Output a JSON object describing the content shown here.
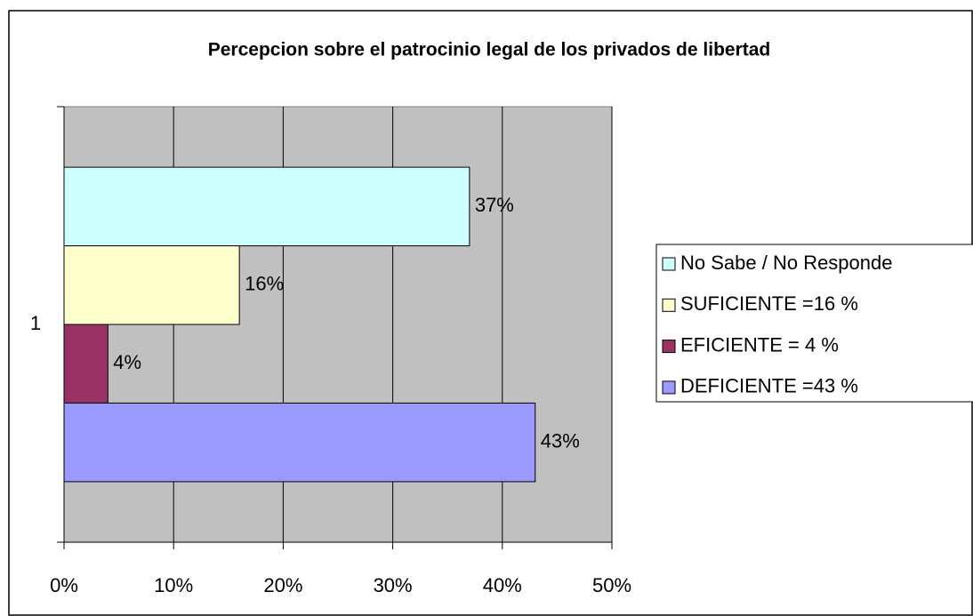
{
  "chart_data": {
    "type": "hbar",
    "title": "Percepcion sobre el patrocinio legal de los privados de libertad",
    "categories": [
      "1"
    ],
    "series": [
      {
        "name": "No Sabe / No Responde",
        "color": "#ccffff",
        "values": [
          37
        ],
        "value_labels": [
          "37%"
        ]
      },
      {
        "name": "SUFICIENTE =16 %",
        "color": "#ffffcc",
        "values": [
          16
        ],
        "value_labels": [
          "16%"
        ]
      },
      {
        "name": "EFICIENTE = 4 %",
        "color": "#993366",
        "values": [
          4
        ],
        "value_labels": [
          "4%"
        ]
      },
      {
        "name": "DEFICIENTE =43 %",
        "color": "#9999ff",
        "values": [
          43
        ],
        "value_labels": [
          "43%"
        ]
      }
    ],
    "xlim": [
      0,
      50
    ],
    "xticks": [
      {
        "value": 0,
        "label": "0%"
      },
      {
        "value": 10,
        "label": "10%"
      },
      {
        "value": 20,
        "label": "20%"
      },
      {
        "value": 30,
        "label": "30%"
      },
      {
        "value": 40,
        "label": "40%"
      },
      {
        "value": 50,
        "label": "50%"
      }
    ],
    "grid": true,
    "legend": "right"
  }
}
